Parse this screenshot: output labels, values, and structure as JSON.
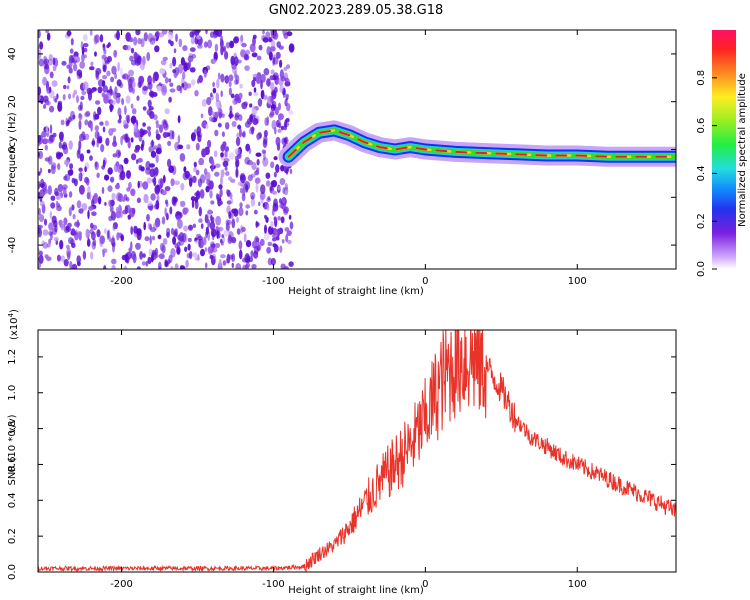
{
  "title": "GN02.2023.289.05.38.G18",
  "colors": {
    "snr_line": "#e8332a",
    "scatter_points": "#7a1fd6",
    "track_core": "#e8193a",
    "track_mid": "#33dd22",
    "track_outer": "#1133ee"
  },
  "chart_data": [
    {
      "type": "heatmap",
      "xlabel": "Height of straight line (km)",
      "ylabel": "Frequency (Hz)",
      "xlim": [
        -255,
        165
      ],
      "ylim": [
        -50,
        50
      ],
      "x_ticks": [
        -200,
        -100,
        0,
        100
      ],
      "x_tick_labels": [
        "-200",
        "-100",
        "0",
        "100"
      ],
      "y_ticks": [
        -40,
        -20,
        0,
        20,
        40
      ],
      "y_tick_labels": [
        "-40",
        "-20",
        "0",
        "20",
        "40"
      ],
      "noise_region_x": [
        -255,
        -88
      ],
      "ridge": {
        "x": [
          -90,
          -80,
          -70,
          -60,
          -50,
          -40,
          -30,
          -20,
          -10,
          0,
          20,
          40,
          60,
          80,
          100,
          120,
          140,
          165
        ],
        "y": [
          -3,
          3,
          7,
          8,
          6,
          3,
          1,
          0,
          1,
          0,
          -1,
          -1.5,
          -2,
          -2.5,
          -2.5,
          -3,
          -3,
          -3
        ]
      },
      "colorbar": {
        "label": "Normalized spectral amplitude",
        "range": [
          0.0,
          1.0
        ],
        "ticks": [
          0.0,
          0.2,
          0.4,
          0.6,
          0.8
        ],
        "tick_labels": [
          "0.0",
          "0.2",
          "0.4",
          "0.6",
          "0.8"
        ]
      }
    },
    {
      "type": "line",
      "xlabel": "Height of straight line (km)",
      "ylabel": "SNR (10 * v/v)",
      "scale_base": "(x10",
      "scale_exp": "4",
      "scale_close": ")",
      "xlim": [
        -255,
        165
      ],
      "ylim": [
        0.0,
        1.35
      ],
      "x_ticks": [
        -200,
        -100,
        0,
        100
      ],
      "x_tick_labels": [
        "-200",
        "-100",
        "0",
        "100"
      ],
      "y_ticks": [
        0.0,
        0.2,
        0.4,
        0.6,
        0.8,
        1.0,
        1.2
      ],
      "y_tick_labels": [
        "0.0",
        "0.2",
        "0.4",
        "0.6",
        "0.8",
        "1.0",
        "1.2"
      ],
      "series": [
        {
          "x": [
            -255,
            -200,
            -150,
            -100,
            -80,
            -70,
            -60,
            -50,
            -40,
            -30,
            -20,
            -10,
            0,
            10,
            20,
            30,
            40,
            50,
            60,
            70,
            80,
            90,
            100,
            110,
            120,
            130,
            140,
            150,
            160,
            165
          ],
          "y": [
            0.02,
            0.02,
            0.02,
            0.02,
            0.03,
            0.1,
            0.15,
            0.25,
            0.38,
            0.5,
            0.6,
            0.7,
            0.85,
            1.05,
            1.18,
            1.2,
            1.15,
            1.02,
            0.85,
            0.75,
            0.7,
            0.64,
            0.6,
            0.56,
            0.52,
            0.48,
            0.44,
            0.4,
            0.36,
            0.33
          ]
        }
      ]
    }
  ]
}
